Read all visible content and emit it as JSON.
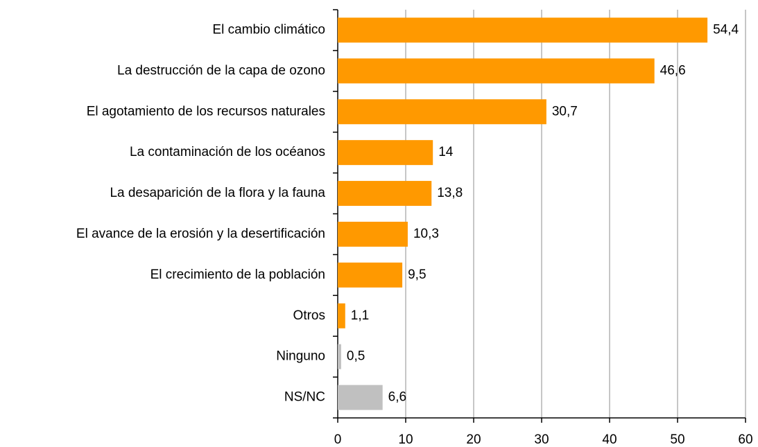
{
  "chart_data": {
    "type": "barh",
    "categories": [
      "El cambio climático",
      "La destrucción de la capa de ozono",
      "El agotamiento de los recursos naturales",
      "La contaminación de los océanos",
      "La desaparición de la flora y la fauna",
      "El avance de la erosión y la desertificación",
      "El crecimiento de la población",
      "Otros",
      "Ninguno",
      "NS/NC"
    ],
    "values": [
      54.4,
      46.6,
      30.7,
      14,
      13.8,
      10.3,
      9.5,
      1.1,
      0.5,
      6.6
    ],
    "value_labels": [
      "54,4",
      "46,6",
      "30,7",
      "14",
      "13,8",
      "10,3",
      "9,5",
      "1,1",
      "0,5",
      "6,6"
    ],
    "colors": [
      "#ff9900",
      "#ff9900",
      "#ff9900",
      "#ff9900",
      "#ff9900",
      "#ff9900",
      "#ff9900",
      "#ff9900",
      "#c0c0c0",
      "#c0c0c0"
    ],
    "xlim": [
      0,
      60
    ],
    "xticks": [
      0,
      10,
      20,
      30,
      40,
      50,
      60
    ],
    "grid": true
  }
}
